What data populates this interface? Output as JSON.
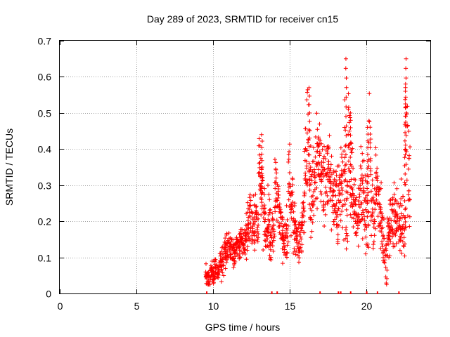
{
  "chart_data": {
    "type": "scatter",
    "title": "Day 289 of 2023, SRMTID for receiver cn15",
    "xlabel": "GPS time / hours",
    "ylabel": "SRMTID / TECUs",
    "xlim": [
      0,
      24.2
    ],
    "ylim": [
      0,
      0.7
    ],
    "xticks": [
      0,
      5,
      10,
      15,
      20
    ],
    "yticks": [
      0,
      0.1,
      0.2,
      0.3,
      0.4,
      0.5,
      0.6,
      0.7
    ],
    "grid": true,
    "marker": "plus",
    "color": "#ff0000",
    "series": [
      {
        "name": "SRMTID",
        "x": [
          9.6,
          9.75,
          9.9,
          10.05,
          10.2,
          10.35,
          10.5,
          10.65,
          10.8,
          10.95,
          11.1,
          11.25,
          11.4,
          11.55,
          11.7,
          11.85,
          12.0,
          12.15,
          12.3,
          12.45,
          12.6,
          12.75,
          12.9,
          13.05,
          13.2,
          13.35,
          13.5,
          13.65,
          13.8,
          13.95,
          14.1,
          14.25,
          14.4,
          14.55,
          14.7,
          14.85,
          15.0,
          15.15,
          15.3,
          15.45,
          15.6,
          15.75,
          15.9,
          16.05,
          16.2,
          16.35,
          16.5,
          16.65,
          16.8,
          16.95,
          17.1,
          17.25,
          17.4,
          17.55,
          17.7,
          17.85,
          18.0,
          18.15,
          18.3,
          18.45,
          18.6,
          18.75,
          18.9,
          19.05,
          19.2,
          19.35,
          19.5,
          19.65,
          19.8,
          19.95,
          20.1,
          20.25,
          20.4,
          20.55,
          20.7,
          20.85,
          21.0,
          21.15,
          21.3,
          21.45,
          21.6,
          21.75,
          21.9,
          22.05,
          22.2,
          22.35,
          22.5,
          22.65,
          22.8
        ],
        "y": [
          0.05,
          0.04,
          0.06,
          0.05,
          0.07,
          0.06,
          0.08,
          0.09,
          0.11,
          0.12,
          0.13,
          0.12,
          0.11,
          0.13,
          0.14,
          0.15,
          0.14,
          0.16,
          0.18,
          0.2,
          0.19,
          0.21,
          0.2,
          0.36,
          0.3,
          0.22,
          0.18,
          0.2,
          0.15,
          0.16,
          0.28,
          0.25,
          0.2,
          0.18,
          0.14,
          0.17,
          0.3,
          0.24,
          0.18,
          0.15,
          0.14,
          0.16,
          0.2,
          0.35,
          0.42,
          0.3,
          0.26,
          0.32,
          0.37,
          0.38,
          0.35,
          0.3,
          0.33,
          0.38,
          0.3,
          0.25,
          0.23,
          0.24,
          0.28,
          0.29,
          0.36,
          0.22,
          0.4,
          0.3,
          0.26,
          0.22,
          0.2,
          0.29,
          0.28,
          0.22,
          0.23,
          0.4,
          0.25,
          0.2,
          0.33,
          0.24,
          0.21,
          0.14,
          0.1,
          0.15,
          0.18,
          0.2,
          0.24,
          0.21,
          0.18,
          0.22,
          0.2,
          0.45,
          0.35
        ],
        "spread": [
          0.02,
          0.02,
          0.02,
          0.02,
          0.02,
          0.02,
          0.03,
          0.03,
          0.03,
          0.03,
          0.03,
          0.03,
          0.03,
          0.03,
          0.03,
          0.03,
          0.03,
          0.04,
          0.05,
          0.05,
          0.05,
          0.06,
          0.06,
          0.07,
          0.08,
          0.07,
          0.06,
          0.06,
          0.05,
          0.05,
          0.07,
          0.07,
          0.06,
          0.06,
          0.05,
          0.06,
          0.08,
          0.07,
          0.06,
          0.05,
          0.05,
          0.05,
          0.06,
          0.1,
          0.12,
          0.1,
          0.08,
          0.09,
          0.1,
          0.09,
          0.09,
          0.09,
          0.08,
          0.09,
          0.08,
          0.07,
          0.07,
          0.08,
          0.08,
          0.09,
          0.15,
          0.1,
          0.12,
          0.09,
          0.08,
          0.07,
          0.07,
          0.08,
          0.08,
          0.07,
          0.07,
          0.09,
          0.08,
          0.07,
          0.08,
          0.08,
          0.07,
          0.05,
          0.05,
          0.06,
          0.06,
          0.06,
          0.07,
          0.07,
          0.06,
          0.07,
          0.07,
          0.15,
          0.12
        ]
      }
    ],
    "peaks": [
      {
        "x": 13.2,
        "y": 0.44
      },
      {
        "x": 16.3,
        "y": 0.57
      },
      {
        "x": 18.7,
        "y": 0.65
      },
      {
        "x": 19.0,
        "y": 0.5
      },
      {
        "x": 20.1,
        "y": 0.46
      },
      {
        "x": 22.6,
        "y": 0.65
      },
      {
        "x": 22.55,
        "y": 0.56
      }
    ],
    "coverage_marks_x": [
      9.6,
      13.85,
      14.2,
      17.0,
      18.2,
      18.35,
      19.0,
      20.05,
      20.75,
      22.15
    ]
  }
}
